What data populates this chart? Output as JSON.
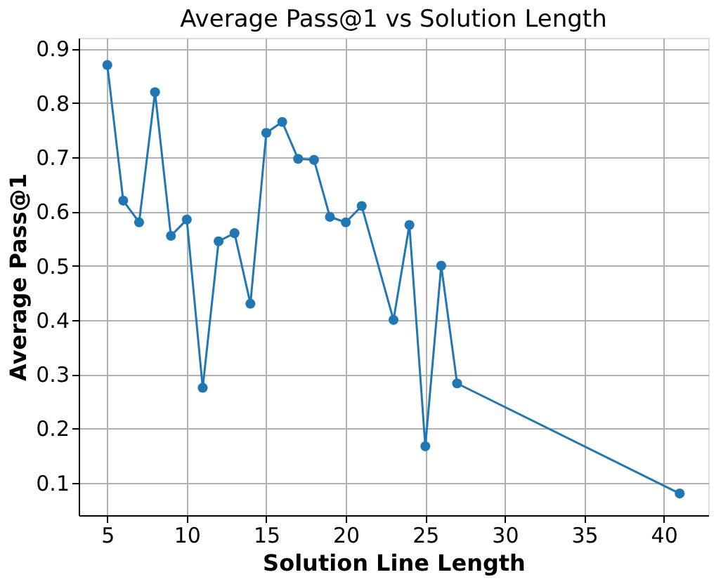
{
  "chart_data": {
    "type": "line",
    "title": "Average Pass@1 vs Solution Length",
    "xlabel": "Solution Line Length",
    "ylabel": "Average Pass@1",
    "x": [
      5,
      6,
      7,
      8,
      9,
      10,
      11,
      12,
      13,
      14,
      15,
      16,
      17,
      18,
      19,
      20,
      21,
      23,
      24,
      25,
      26,
      27,
      41
    ],
    "series": [
      {
        "color": "#1f77b4",
        "values": [
          0.87,
          0.62,
          0.58,
          0.82,
          0.555,
          0.585,
          0.275,
          0.545,
          0.56,
          0.43,
          0.745,
          0.765,
          0.697,
          0.695,
          0.59,
          0.58,
          0.61,
          0.4,
          0.575,
          0.167,
          0.5,
          0.283,
          0.08
        ]
      }
    ],
    "xlim": [
      3.2,
      42.8
    ],
    "xticks": [
      5,
      10,
      15,
      20,
      25,
      30,
      35,
      40
    ],
    "ylim": [
      0.04,
      0.92
    ],
    "yticks": [
      0.1,
      0.2,
      0.3,
      0.4,
      0.5,
      0.6,
      0.7,
      0.8,
      0.9
    ],
    "grid": true,
    "marker": "circle",
    "line_style": "solid"
  }
}
